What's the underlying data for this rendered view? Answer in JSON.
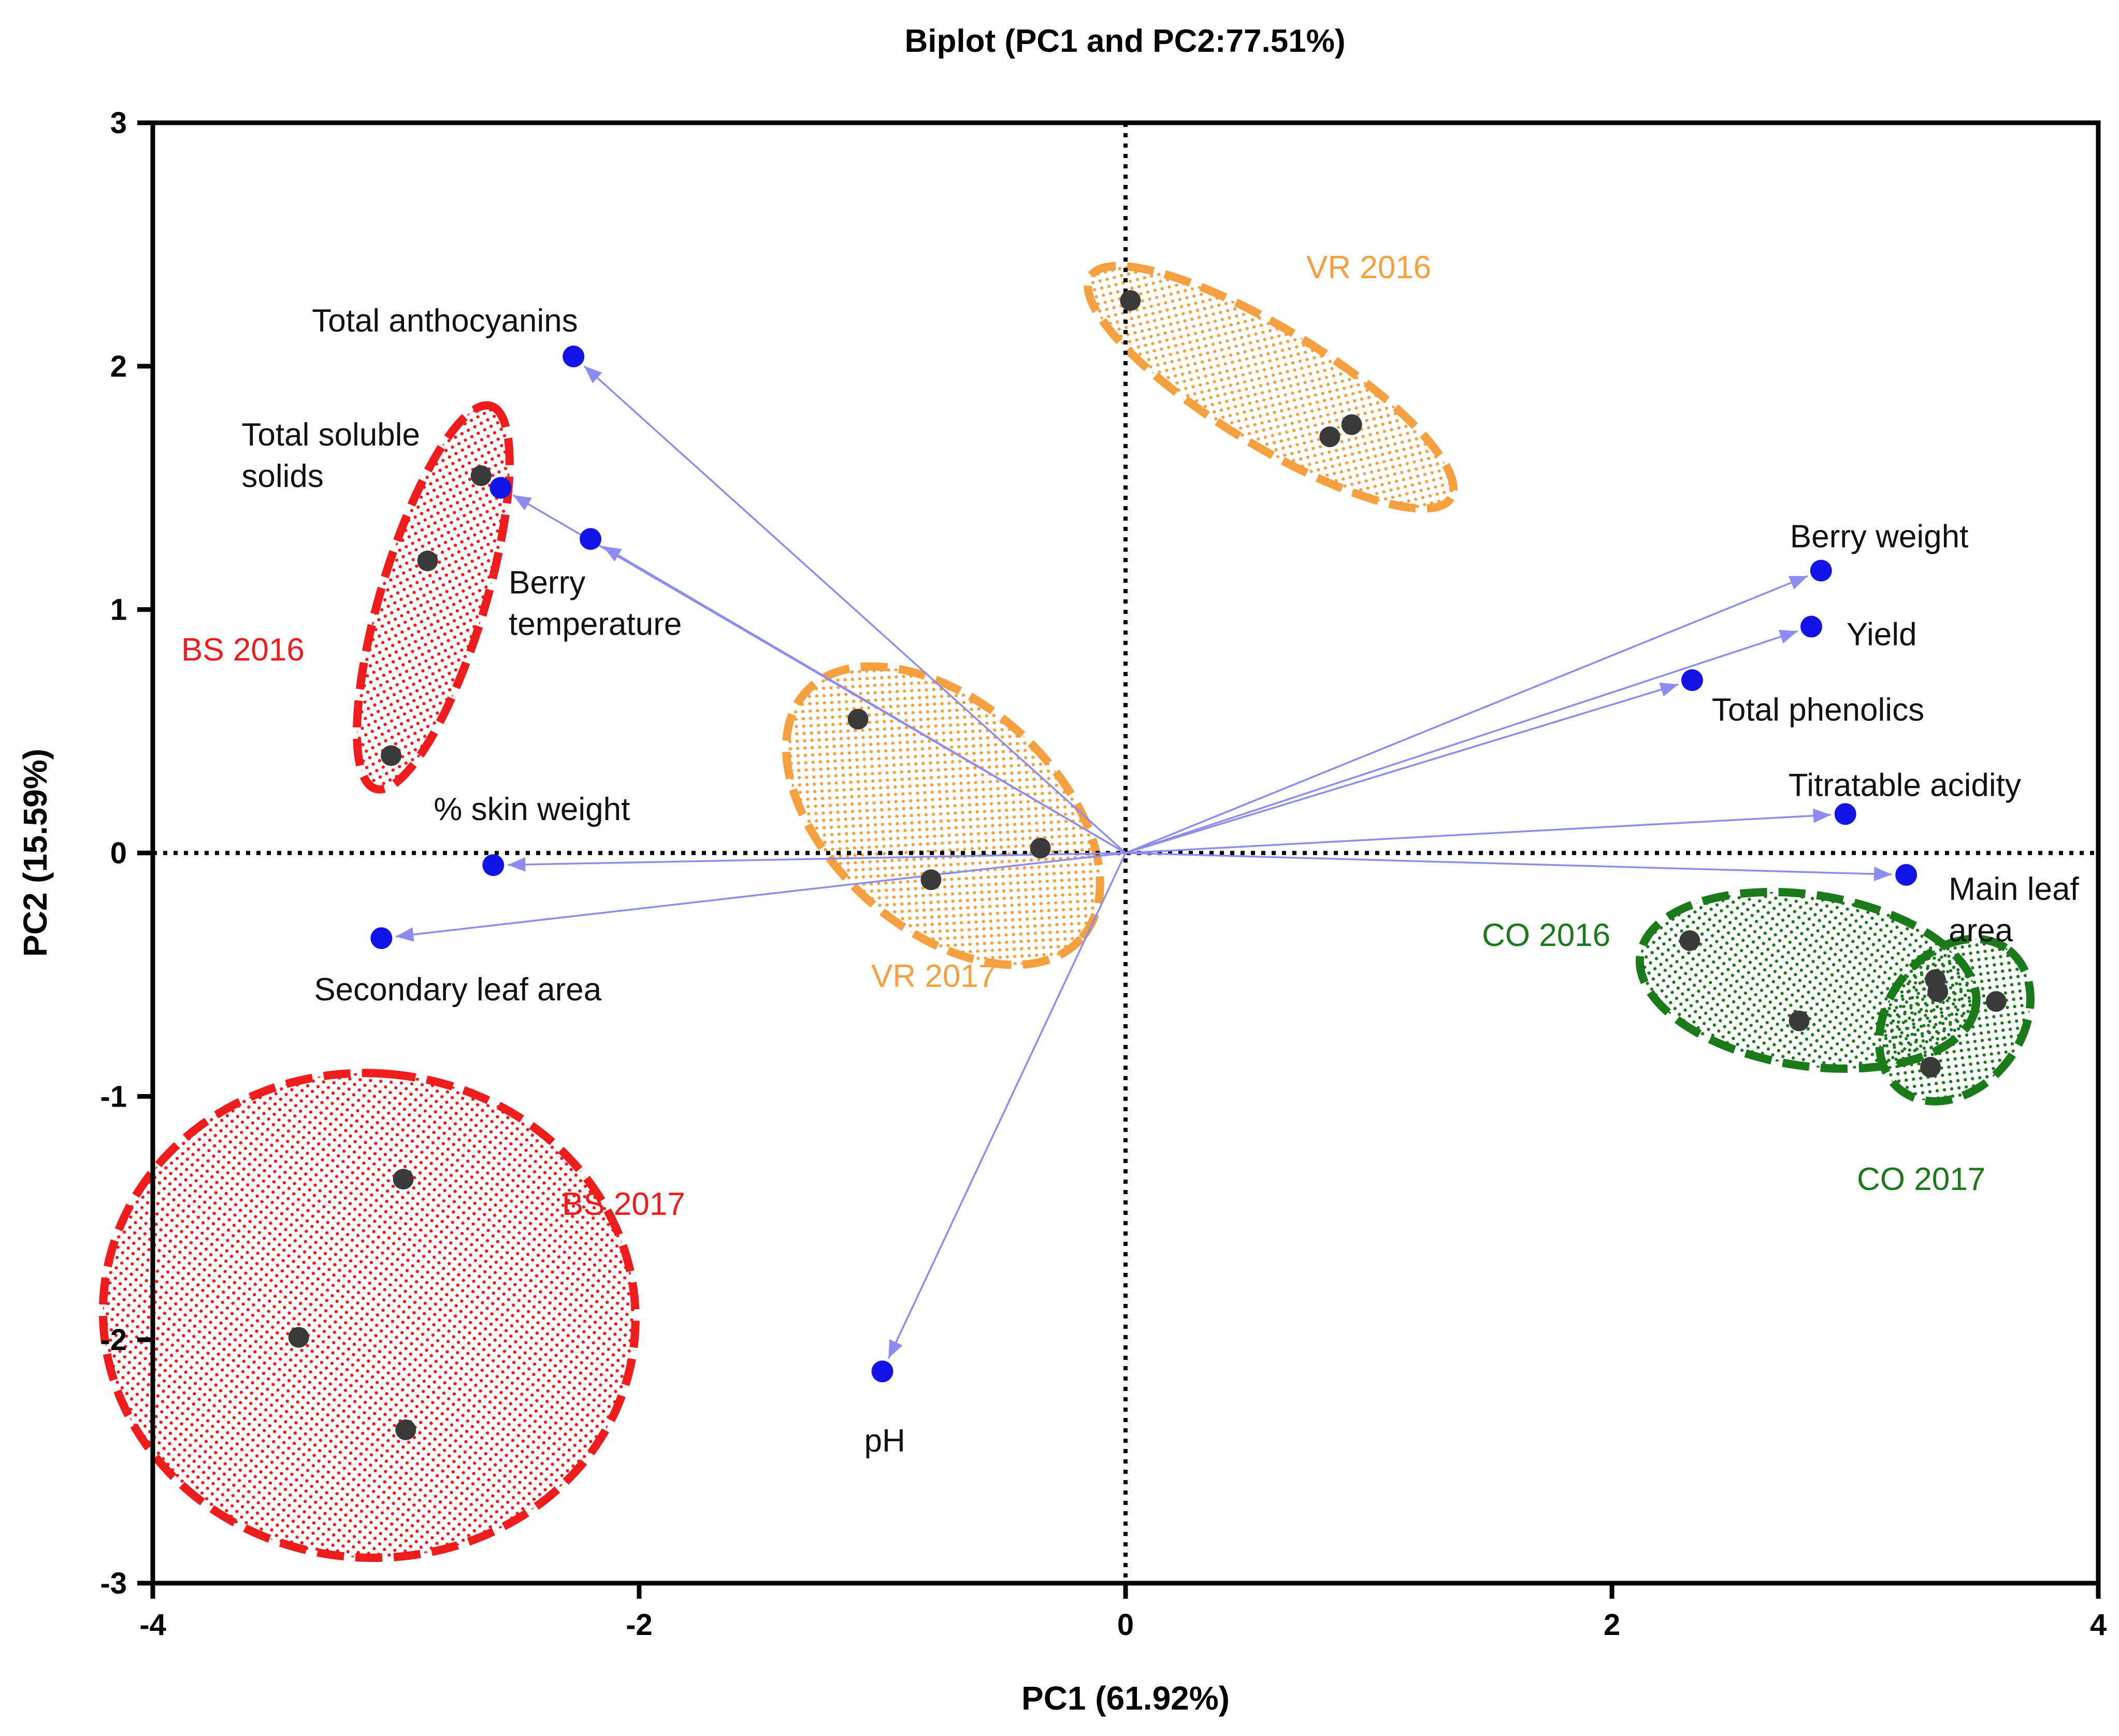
{
  "chart_data": {
    "type": "scatter",
    "subtype": "pca-biplot",
    "title": "Biplot (PC1 and PC2:77.51%)",
    "xlabel": "PC1 (61.92%)",
    "ylabel": "PC2 (15.59%)",
    "xlim": [
      -4,
      4
    ],
    "ylim": [
      -3,
      3
    ],
    "x_ticks": [
      -4,
      -2,
      0,
      2,
      4
    ],
    "y_ticks": [
      3,
      2,
      1,
      0,
      -1,
      -2,
      -3
    ],
    "x_tick_labels": [
      "-4",
      "-2",
      "0",
      "2",
      "4"
    ],
    "y_tick_labels": [
      "3",
      "2",
      "1",
      "0",
      "-1",
      "-2",
      "-3"
    ],
    "grid": false,
    "zero_lines": "dotted",
    "colors": {
      "loading_point": "#1414e6",
      "loading_arrow": "#8c8cf0",
      "score_point": "#3a3a3a",
      "BS": "#ee1c1c",
      "VR": "#f4a040",
      "CO": "#1a7a1a",
      "label_text": "#111111"
    },
    "loadings": [
      {
        "name": "Total anthocyanins",
        "x": -2.27,
        "y": 2.04,
        "label_lines": [
          "Total anthocyanins"
        ]
      },
      {
        "name": "Total soluble solids",
        "x": -2.57,
        "y": 1.5,
        "label_lines": [
          "Total soluble",
          "solids"
        ]
      },
      {
        "name": "Berry temperature",
        "x": -2.2,
        "y": 1.29,
        "label_lines": [
          "Berry",
          "temperature"
        ]
      },
      {
        "name": "% skin weight",
        "x": -2.6,
        "y": -0.05,
        "label_lines": [
          "% skin weight"
        ]
      },
      {
        "name": "Secondary leaf area",
        "x": -3.06,
        "y": -0.35,
        "label_lines": [
          "Secondary leaf area"
        ]
      },
      {
        "name": "pH",
        "x": -1.0,
        "y": -2.13,
        "label_lines": [
          "pH"
        ]
      },
      {
        "name": "Berry weight",
        "x": 2.86,
        "y": 1.16,
        "label_lines": [
          "Berry weight"
        ]
      },
      {
        "name": "Yield",
        "x": 2.82,
        "y": 0.93,
        "label_lines": [
          "Yield"
        ]
      },
      {
        "name": "Total phenolics",
        "x": 2.33,
        "y": 0.71,
        "label_lines": [
          "Total phenolics"
        ]
      },
      {
        "name": "Titratable acidity",
        "x": 2.96,
        "y": 0.16,
        "label_lines": [
          "Titratable acidity"
        ]
      },
      {
        "name": "Main leaf area",
        "x": 3.21,
        "y": -0.09,
        "label_lines": [
          "Main leaf",
          "area"
        ]
      }
    ],
    "groups": [
      {
        "name": "BS 2016",
        "color_key": "BS",
        "points": [
          [
            -2.65,
            1.55
          ],
          [
            -2.87,
            1.2
          ],
          [
            -3.02,
            0.4
          ]
        ]
      },
      {
        "name": "BS 2017",
        "color_key": "BS",
        "points": [
          [
            -2.97,
            -1.34
          ],
          [
            -3.4,
            -1.99
          ],
          [
            -2.96,
            -2.37
          ]
        ]
      },
      {
        "name": "VR 2016",
        "color_key": "VR",
        "points": [
          [
            0.02,
            2.27
          ],
          [
            0.84,
            1.71
          ],
          [
            0.93,
            1.76
          ]
        ]
      },
      {
        "name": "VR 2017",
        "color_key": "VR",
        "points": [
          [
            -1.1,
            0.55
          ],
          [
            -0.35,
            0.02
          ],
          [
            -0.8,
            -0.11
          ]
        ]
      },
      {
        "name": "CO 2016",
        "color_key": "CO",
        "points": [
          [
            2.32,
            -0.36
          ],
          [
            2.77,
            -0.69
          ],
          [
            3.33,
            -0.52
          ]
        ]
      },
      {
        "name": "CO 2017",
        "color_key": "CO",
        "points": [
          [
            3.34,
            -0.57
          ],
          [
            3.58,
            -0.61
          ],
          [
            3.31,
            -0.88
          ]
        ]
      }
    ]
  }
}
